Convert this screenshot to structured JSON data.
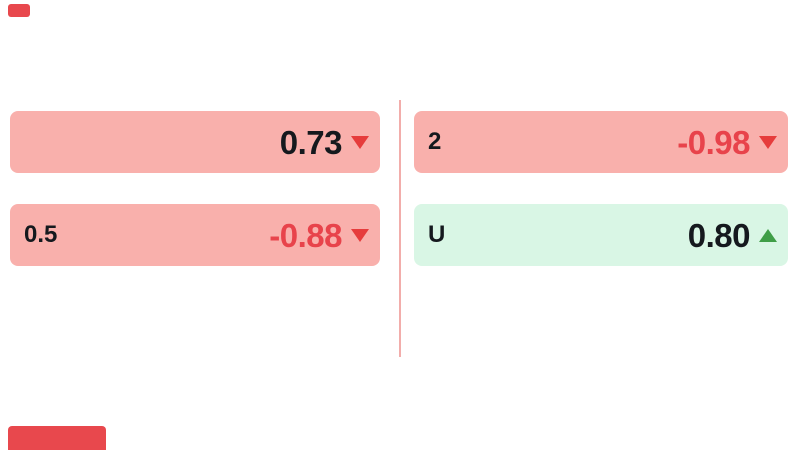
{
  "colors": {
    "cell_down_bg": "#f9b0ac",
    "cell_up_bg": "#d9f6e5",
    "value_normal": "#15191e",
    "value_down": "#e8434b",
    "arrow_down": "#e63c3c",
    "arrow_up": "#3f9e47",
    "divider": "#f2adab",
    "fragment": "#e8484d"
  },
  "odds_grid": {
    "left_column": {
      "cells": [
        {
          "label": "",
          "value": "0.73",
          "trend": "down",
          "highlight": "down"
        },
        {
          "label": "0.5",
          "value": "-0.88",
          "trend": "down",
          "highlight": "down"
        }
      ]
    },
    "right_column": {
      "cells": [
        {
          "label": "2",
          "value": "-0.98",
          "trend": "down",
          "highlight": "down"
        },
        {
          "label": "U",
          "value": "0.80",
          "trend": "up",
          "highlight": "up"
        }
      ]
    },
    "partial_cells": [
      {
        "position": "top-left"
      },
      {
        "position": "bottom-left"
      }
    ]
  }
}
